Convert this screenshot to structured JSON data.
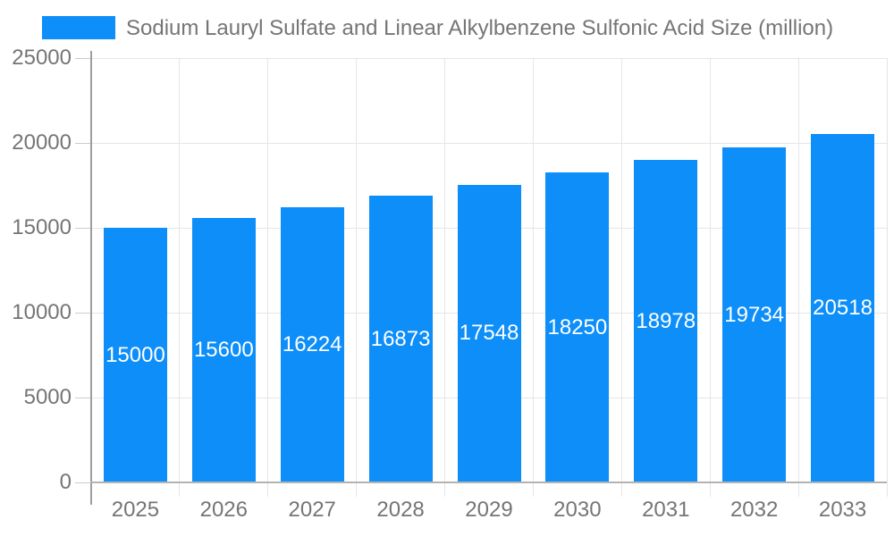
{
  "legend": {
    "series_label": "Sodium Lauryl Sulfate and Linear Alkylbenzene Sulfonic Acid Size (million)"
  },
  "chart_data": {
    "type": "bar",
    "title": "Sodium Lauryl Sulfate and Linear Alkylbenzene Sulfonic Acid Size (million)",
    "categories": [
      "2025",
      "2026",
      "2027",
      "2028",
      "2029",
      "2030",
      "2031",
      "2032",
      "2033"
    ],
    "values": [
      15000,
      15600,
      16224,
      16873,
      17548,
      18250,
      18978,
      19734,
      20518
    ],
    "value_labels": [
      "15000",
      "15600",
      "16224",
      "16873",
      "17548",
      "18250",
      "18978",
      "19734",
      "20518"
    ],
    "xlabel": "",
    "ylabel": "",
    "ylim": [
      0,
      25000
    ],
    "yticks": [
      0,
      5000,
      10000,
      15000,
      20000,
      25000
    ],
    "ytick_labels": [
      "0",
      "5000",
      "10000",
      "15000",
      "20000",
      "25000"
    ],
    "grid": true,
    "legend_position": "top-left",
    "bar_color": "#0d8ef9",
    "value_label_color": "#ffffff",
    "axis_label_color": "#757575"
  }
}
